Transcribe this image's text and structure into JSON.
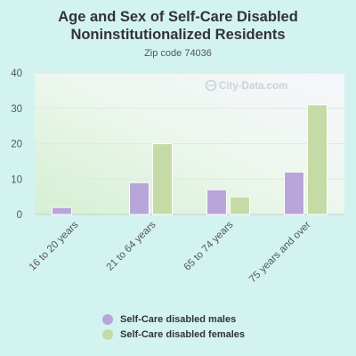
{
  "chart_data": {
    "type": "bar",
    "title": "Age and Sex of Self-Care Disabled Noninstitutionalized Residents",
    "subtitle": "Zip code 74036",
    "categories": [
      "16 to 20 years",
      "21 to 64 years",
      "65 to 74 years",
      "75 years and over"
    ],
    "series": [
      {
        "name": "Self-Care disabled males",
        "color": "#b9a6d9",
        "values": [
          2,
          9,
          7,
          12
        ]
      },
      {
        "name": "Self-Care disabled females",
        "color": "#c5dba5",
        "values": [
          0,
          20,
          5,
          31
        ]
      }
    ],
    "xlabel": "",
    "ylabel": "",
    "ylim": [
      0,
      40
    ],
    "yticks": [
      "0",
      "10",
      "20",
      "30",
      "40"
    ],
    "grid": true,
    "legend_position": "bottom",
    "watermark": "City-Data.com"
  }
}
